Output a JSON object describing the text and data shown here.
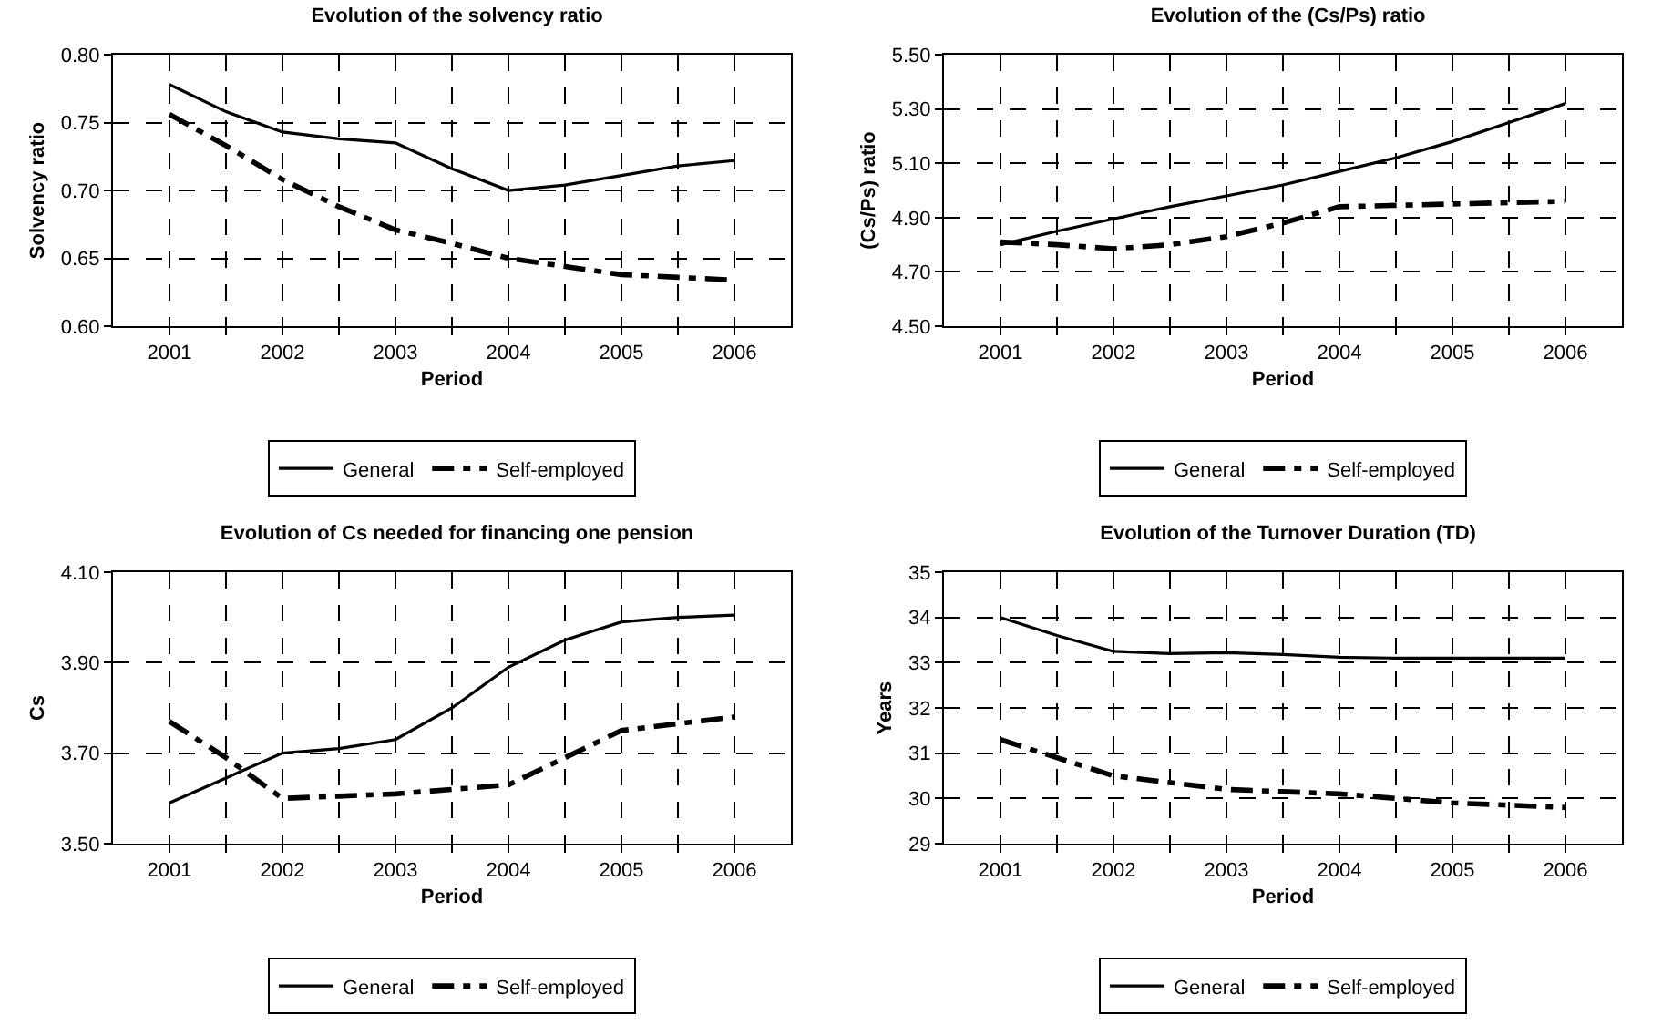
{
  "chart_data": [
    {
      "type": "line",
      "title": "Evolution of the solvency ratio",
      "xlabel": "Period",
      "ylabel": "Solvency ratio",
      "x": [
        2001,
        2001.5,
        2002,
        2002.5,
        2003,
        2003.5,
        2004,
        2004.5,
        2005,
        2005.5,
        2006
      ],
      "series": [
        {
          "name": "General",
          "color": "#000000",
          "line_style": "solid",
          "values": [
            0.778,
            0.758,
            0.743,
            0.738,
            0.735,
            0.716,
            0.7,
            0.704,
            0.711,
            0.718,
            0.722
          ]
        },
        {
          "name": "Self-employed",
          "color": "#000000",
          "line_style": "dashed",
          "values": [
            0.756,
            0.733,
            0.708,
            0.688,
            0.671,
            0.661,
            0.65,
            0.644,
            0.638,
            0.636,
            0.634
          ]
        }
      ],
      "xlim": [
        2000.5,
        2006.5
      ],
      "xticks": [
        2001,
        {
          "value": 2001.5,
          "label": null
        },
        2002,
        {
          "value": 2002.5,
          "label": null
        },
        2003,
        {
          "value": 2003.5,
          "label": null
        },
        2004,
        {
          "value": 2004.5,
          "label": null
        },
        2005,
        {
          "value": 2005.5,
          "label": null
        },
        2006
      ],
      "ylim": [
        0.6,
        0.8
      ],
      "yticks": [
        {
          "value": 0.6,
          "label": "0.60"
        },
        {
          "value": 0.65,
          "label": "0.65"
        },
        {
          "value": 0.7,
          "label": "0.70"
        },
        {
          "value": 0.75,
          "label": "0.75"
        },
        {
          "value": 0.8,
          "label": "0.80"
        }
      ],
      "grid": true,
      "legend": "bottom",
      "marker": "none"
    },
    {
      "type": "line",
      "title": "Evolution of the (Cs/Ps) ratio",
      "xlabel": "Period",
      "ylabel": "(Cs/Ps) ratio",
      "x": [
        2001,
        2001.5,
        2002,
        2002.5,
        2003,
        2003.5,
        2004,
        2004.5,
        2005,
        2005.5,
        2006
      ],
      "series": [
        {
          "name": "General",
          "color": "#000000",
          "line_style": "solid",
          "values": [
            4.8,
            4.85,
            4.895,
            4.94,
            4.98,
            5.02,
            5.07,
            5.12,
            5.18,
            5.25,
            5.32
          ]
        },
        {
          "name": "Self-employed",
          "color": "#000000",
          "line_style": "dashed",
          "values": [
            4.81,
            4.8,
            4.785,
            4.8,
            4.83,
            4.88,
            4.94,
            4.945,
            4.95,
            4.955,
            4.96
          ]
        }
      ],
      "xlim": [
        2000.5,
        2006.5
      ],
      "xticks": [
        2001,
        {
          "value": 2001.5,
          "label": null
        },
        2002,
        {
          "value": 2002.5,
          "label": null
        },
        2003,
        {
          "value": 2003.5,
          "label": null
        },
        2004,
        {
          "value": 2004.5,
          "label": null
        },
        2005,
        {
          "value": 2005.5,
          "label": null
        },
        2006
      ],
      "ylim": [
        4.5,
        5.5
      ],
      "yticks": [
        {
          "value": 4.5,
          "label": "4.50"
        },
        {
          "value": 4.7,
          "label": "4.70"
        },
        {
          "value": 4.9,
          "label": "4.90"
        },
        {
          "value": 5.1,
          "label": "5.10"
        },
        {
          "value": 5.3,
          "label": "5.30"
        },
        {
          "value": 5.5,
          "label": "5.50"
        }
      ],
      "grid": true,
      "legend": "bottom",
      "marker": "none"
    },
    {
      "type": "line",
      "title": "Evolution of Cs needed for financing one pension",
      "xlabel": "Period",
      "ylabel": "Cs",
      "x": [
        2001,
        2001.5,
        2002,
        2002.5,
        2003,
        2003.5,
        2004,
        2004.5,
        2005,
        2005.5,
        2006
      ],
      "series": [
        {
          "name": "General",
          "color": "#000000",
          "line_style": "solid",
          "values": [
            3.59,
            3.645,
            3.7,
            3.71,
            3.73,
            3.8,
            3.89,
            3.95,
            3.99,
            4.0,
            4.005
          ]
        },
        {
          "name": "Self-employed",
          "color": "#000000",
          "line_style": "dashed",
          "values": [
            3.77,
            3.69,
            3.6,
            3.605,
            3.61,
            3.62,
            3.63,
            3.69,
            3.75,
            3.765,
            3.78
          ]
        }
      ],
      "xlim": [
        2000.5,
        2006.5
      ],
      "xticks": [
        2001,
        {
          "value": 2001.5,
          "label": null
        },
        2002,
        {
          "value": 2002.5,
          "label": null
        },
        2003,
        {
          "value": 2003.5,
          "label": null
        },
        2004,
        {
          "value": 2004.5,
          "label": null
        },
        2005,
        {
          "value": 2005.5,
          "label": null
        },
        2006
      ],
      "ylim": [
        3.5,
        4.1
      ],
      "yticks": [
        {
          "value": 3.5,
          "label": "3.50"
        },
        {
          "value": 3.7,
          "label": "3.70"
        },
        {
          "value": 3.9,
          "label": "3.90"
        },
        {
          "value": 4.1,
          "label": "4.10"
        }
      ],
      "grid": true,
      "legend": "bottom",
      "marker": "none"
    },
    {
      "type": "line",
      "title": "Evolution of the Turnover Duration (TD)",
      "xlabel": "Period",
      "ylabel": "Years",
      "x": [
        2001,
        2001.5,
        2002,
        2002.5,
        2003,
        2003.5,
        2004,
        2004.5,
        2005,
        2005.5,
        2006
      ],
      "series": [
        {
          "name": "General",
          "color": "#000000",
          "line_style": "solid",
          "values": [
            34.0,
            33.6,
            33.25,
            33.2,
            33.22,
            33.18,
            33.12,
            33.1,
            33.1,
            33.1,
            33.1
          ]
        },
        {
          "name": "Self-employed",
          "color": "#000000",
          "line_style": "dashed",
          "values": [
            31.3,
            30.9,
            30.5,
            30.35,
            30.2,
            30.15,
            30.1,
            30.0,
            29.9,
            29.85,
            29.8
          ]
        }
      ],
      "xlim": [
        2000.5,
        2006.5
      ],
      "xticks": [
        2001,
        {
          "value": 2001.5,
          "label": null
        },
        2002,
        {
          "value": 2002.5,
          "label": null
        },
        2003,
        {
          "value": 2003.5,
          "label": null
        },
        2004,
        {
          "value": 2004.5,
          "label": null
        },
        2005,
        {
          "value": 2005.5,
          "label": null
        },
        2006
      ],
      "ylim": [
        29,
        35
      ],
      "yticks": [
        29,
        30,
        31,
        32,
        33,
        34,
        35
      ],
      "grid": true,
      "legend": "bottom",
      "marker": "none"
    }
  ]
}
